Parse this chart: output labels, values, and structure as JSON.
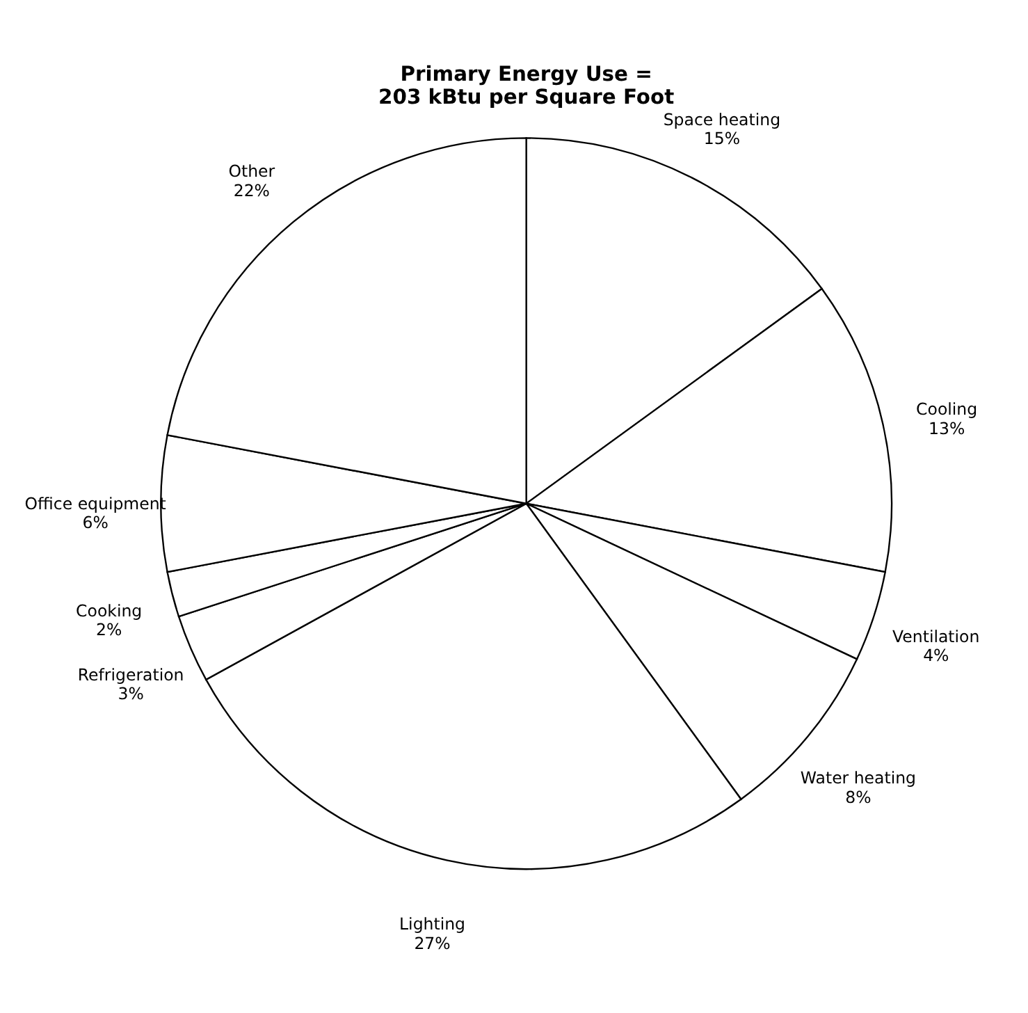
{
  "chart_data": {
    "type": "pie",
    "title": "Primary Energy Use =\n203 kBtu per Square Foot",
    "categories": [
      "Space heating",
      "Cooling",
      "Ventilation",
      "Water heating",
      "Lighting",
      "Refrigeration",
      "Cooking",
      "Office equipment",
      "Other"
    ],
    "values": [
      15,
      13,
      4,
      8,
      27,
      3,
      2,
      6,
      22
    ],
    "value_labels": [
      "15%",
      "13%",
      "4%",
      "8%",
      "27%",
      "3%",
      "2%",
      "6%",
      "22%"
    ],
    "colors": [
      "#ffffff",
      "#ffffff",
      "#ffffff",
      "#ffffff",
      "#ffffff",
      "#ffffff",
      "#ffffff",
      "#ffffff",
      "#ffffff"
    ],
    "legend": false
  }
}
